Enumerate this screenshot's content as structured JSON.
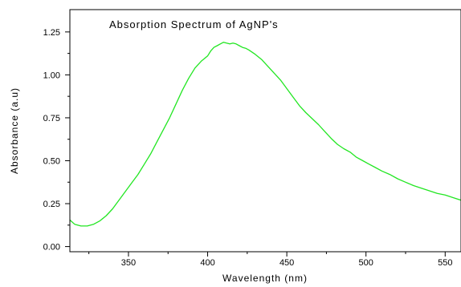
{
  "chart_data": {
    "type": "line",
    "title": "Absorption Spectrum of AgNP's",
    "xlabel": "Wavelength (nm)",
    "ylabel": "Absorbance (a.u)",
    "xlim": [
      313,
      560
    ],
    "ylim": [
      -0.03,
      1.38
    ],
    "x_ticks": [
      350,
      400,
      450,
      500,
      550
    ],
    "x_tick_labels": [
      "350",
      "400",
      "450",
      "500",
      "550"
    ],
    "x_minor_ticks": [
      325,
      375,
      425,
      475,
      525
    ],
    "y_ticks": [
      0.0,
      0.25,
      0.5,
      0.75,
      1.0,
      1.25
    ],
    "y_tick_labels": [
      "0.00",
      "0.25",
      "0.50",
      "0.75",
      "1.00",
      "1.25"
    ],
    "y_minor_ticks": [
      0.125,
      0.375,
      0.625,
      0.875,
      1.125
    ],
    "grid": false,
    "legend": "none",
    "line_color": "#22e622",
    "series": [
      {
        "x": [
          313,
          316,
          320,
          324,
          328,
          332,
          336,
          340,
          344,
          348,
          352,
          356,
          360,
          364,
          368,
          372,
          376,
          380,
          384,
          388,
          392,
          396,
          400,
          402,
          404,
          406,
          408,
          410,
          412,
          414,
          416,
          418,
          420,
          422,
          424,
          426,
          430,
          434,
          438,
          442,
          446,
          450,
          454,
          458,
          462,
          466,
          470,
          474,
          478,
          482,
          486,
          490,
          494,
          498,
          502,
          506,
          510,
          515,
          520,
          525,
          530,
          535,
          540,
          545,
          550,
          555,
          560
        ],
        "y": [
          0.155,
          0.13,
          0.12,
          0.12,
          0.13,
          0.15,
          0.18,
          0.22,
          0.27,
          0.32,
          0.37,
          0.42,
          0.48,
          0.54,
          0.61,
          0.68,
          0.75,
          0.83,
          0.91,
          0.98,
          1.04,
          1.08,
          1.11,
          1.14,
          1.16,
          1.17,
          1.18,
          1.19,
          1.185,
          1.18,
          1.185,
          1.18,
          1.17,
          1.16,
          1.155,
          1.145,
          1.12,
          1.09,
          1.05,
          1.01,
          0.97,
          0.92,
          0.87,
          0.82,
          0.78,
          0.745,
          0.71,
          0.67,
          0.63,
          0.595,
          0.57,
          0.55,
          0.52,
          0.5,
          0.48,
          0.46,
          0.44,
          0.42,
          0.395,
          0.375,
          0.355,
          0.34,
          0.325,
          0.31,
          0.3,
          0.285,
          0.27
        ]
      }
    ]
  }
}
